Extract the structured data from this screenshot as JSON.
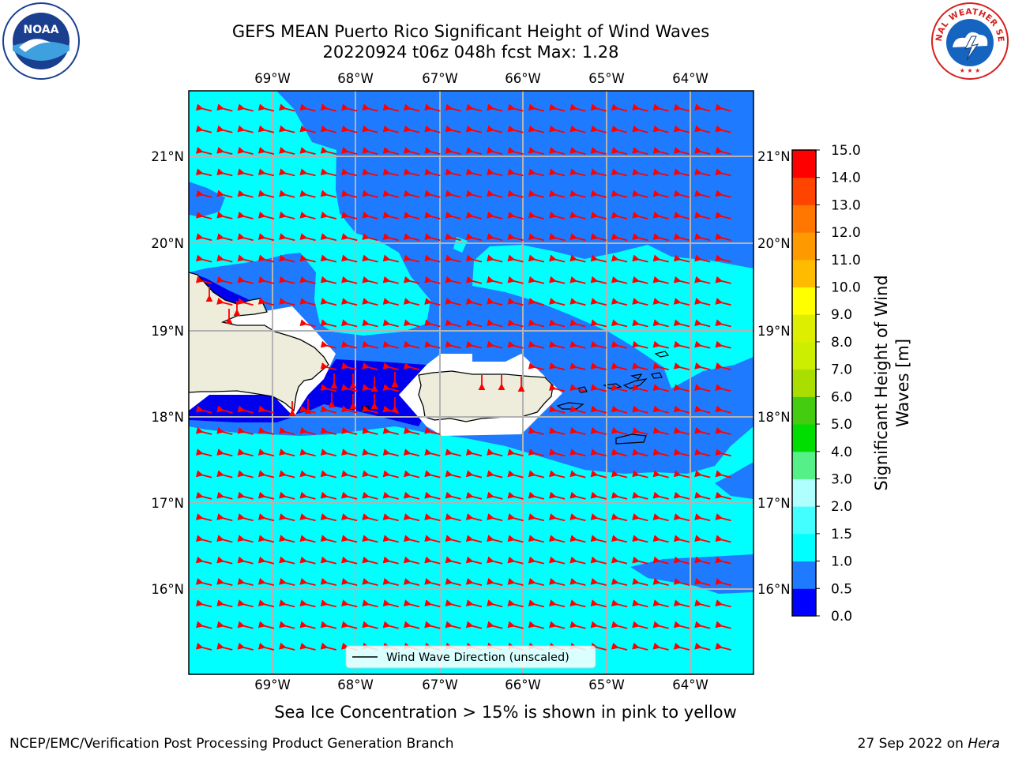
{
  "title": {
    "line1": "GEFS MEAN Puerto Rico Significant Height of Wind Waves",
    "line2": "20220924 t06z 048h fcst   Max: 1.28"
  },
  "map": {
    "lon_labels": [
      "69°W",
      "68°W",
      "67°W",
      "66°W",
      "65°W",
      "64°W"
    ],
    "lat_labels": [
      "21°N",
      "20°N",
      "19°N",
      "18°N",
      "17°N",
      "16°N"
    ],
    "colors": {
      "band_0_05": "#0000ee",
      "band_05_1": "#1e7bff",
      "band_1_15": "#00ffff",
      "land": "#eeecdb",
      "arrow": "#ff0000",
      "grid": "#b3b3b3"
    },
    "arrow_direction": "west",
    "legend_label": "Wind Wave Direction (unscaled)"
  },
  "colorbar": {
    "title_line1": "Significant Height of Wind",
    "title_line2": "Waves [m]",
    "tick_labels": [
      "0.0",
      "0.5",
      "1.0",
      "1.5",
      "2.0",
      "3.0",
      "4.0",
      "5.0",
      "6.0",
      "7.0",
      "8.0",
      "9.0",
      "10.0",
      "11.0",
      "12.0",
      "13.0",
      "14.0",
      "15.0"
    ],
    "colors": [
      "#0000ff",
      "#1e7bff",
      "#00ffff",
      "#44ffff",
      "#b0ffff",
      "#55f088",
      "#00dd00",
      "#44cc11",
      "#aadd00",
      "#ccee00",
      "#ddee00",
      "#ffff00",
      "#ffbb00",
      "#ff9900",
      "#ff7700",
      "#ff4400",
      "#ff0000"
    ]
  },
  "ice_note": "Sea Ice Concentration > 15% is shown in pink to yellow",
  "footer": {
    "left": "NCEP/EMC/Verification Post Processing Product Generation Branch",
    "right_date": "27 Sep 2022 on ",
    "right_host": "Hera"
  },
  "logos": {
    "noaa_text": "NOAA",
    "nws_text": "NATIONAL WEATHER SERVICE"
  }
}
